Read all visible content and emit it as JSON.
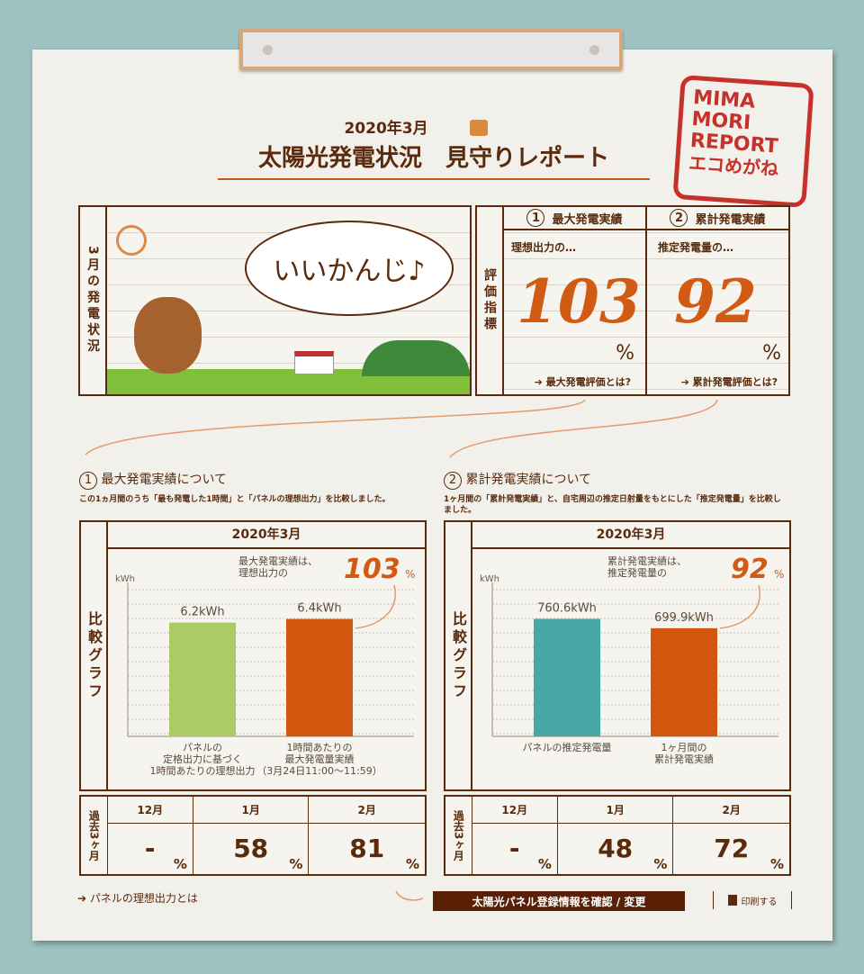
{
  "header": {
    "date": "2020年3月",
    "title": "太陽光発電状況　見守りレポート",
    "stamp_text": [
      "MIMA",
      "MORI",
      "REPORT",
      "エコめがね"
    ]
  },
  "status": {
    "label": "3月の発電状況",
    "speech": "いいかんじ♪"
  },
  "indicators": {
    "label": "評価指標",
    "items": [
      {
        "num": "1",
        "title": "最大発電実績",
        "sub": "理想出力の…",
        "value": "103",
        "unit": "%",
        "link": "最大発電評価とは?"
      },
      {
        "num": "2",
        "title": "累計発電実績",
        "sub": "推定発電量の…",
        "value": "92",
        "unit": "%",
        "link": "累計発電評価とは?"
      }
    ]
  },
  "sections": [
    {
      "num": "1",
      "title": "最大発電実績について",
      "desc": "この1ヵ月間のうち「最も発電した1時間」と「パネルの理想出力」を比較しました。",
      "side_label": "比較グラフ",
      "note": "最大発電実績は、\n理想出力の",
      "note_value": "103",
      "note_unit": "%",
      "past_label": "過去3ヶ月",
      "past": [
        {
          "month": "12月",
          "value": "-"
        },
        {
          "month": "1月",
          "value": "58"
        },
        {
          "month": "2月",
          "value": "81"
        }
      ]
    },
    {
      "num": "2",
      "title": "累計発電実績について",
      "desc": "1ヶ月間の「累計発電実績」と、自宅周辺の推定日射量をもとにした「推定発電量」を比較しました。",
      "side_label": "比較グラフ",
      "note": "累計発電実績は、\n推定発電量の",
      "note_value": "92",
      "note_unit": "%",
      "past_label": "過去3ヶ月",
      "past": [
        {
          "month": "12月",
          "value": "-"
        },
        {
          "month": "1月",
          "value": "48"
        },
        {
          "month": "2月",
          "value": "72"
        }
      ]
    }
  ],
  "past_unit": "%",
  "chart_data": [
    {
      "type": "bar",
      "title": "2020年3月",
      "ylabel": "kWh",
      "ylim": [
        0,
        8
      ],
      "grid": true,
      "categories": [
        "パネルの\n定格出力に基づく\n1時間あたりの理想出力",
        "1時間あたりの\n最大発電量実績\n（3月24日11:00〜11:59）"
      ],
      "values": [
        6.2,
        6.4
      ],
      "data_labels": [
        "6.2kWh",
        "6.4kWh"
      ],
      "colors": [
        "#aacb66",
        "#d2560d"
      ]
    },
    {
      "type": "bar",
      "title": "2020年3月",
      "ylabel": "kWh",
      "ylim": [
        0,
        950
      ],
      "grid": true,
      "categories": [
        "パネルの推定発電量",
        "1ヶ月間の\n累計発電実績"
      ],
      "values": [
        760.6,
        699.9
      ],
      "data_labels": [
        "760.6kWh",
        "699.9kWh"
      ],
      "colors": [
        "#48a8a6",
        "#d2560d"
      ]
    }
  ],
  "footer": {
    "link": "パネルの理想出力とは",
    "button": "太陽光パネル登録情報を確認 / 変更",
    "print": "印刷する"
  }
}
